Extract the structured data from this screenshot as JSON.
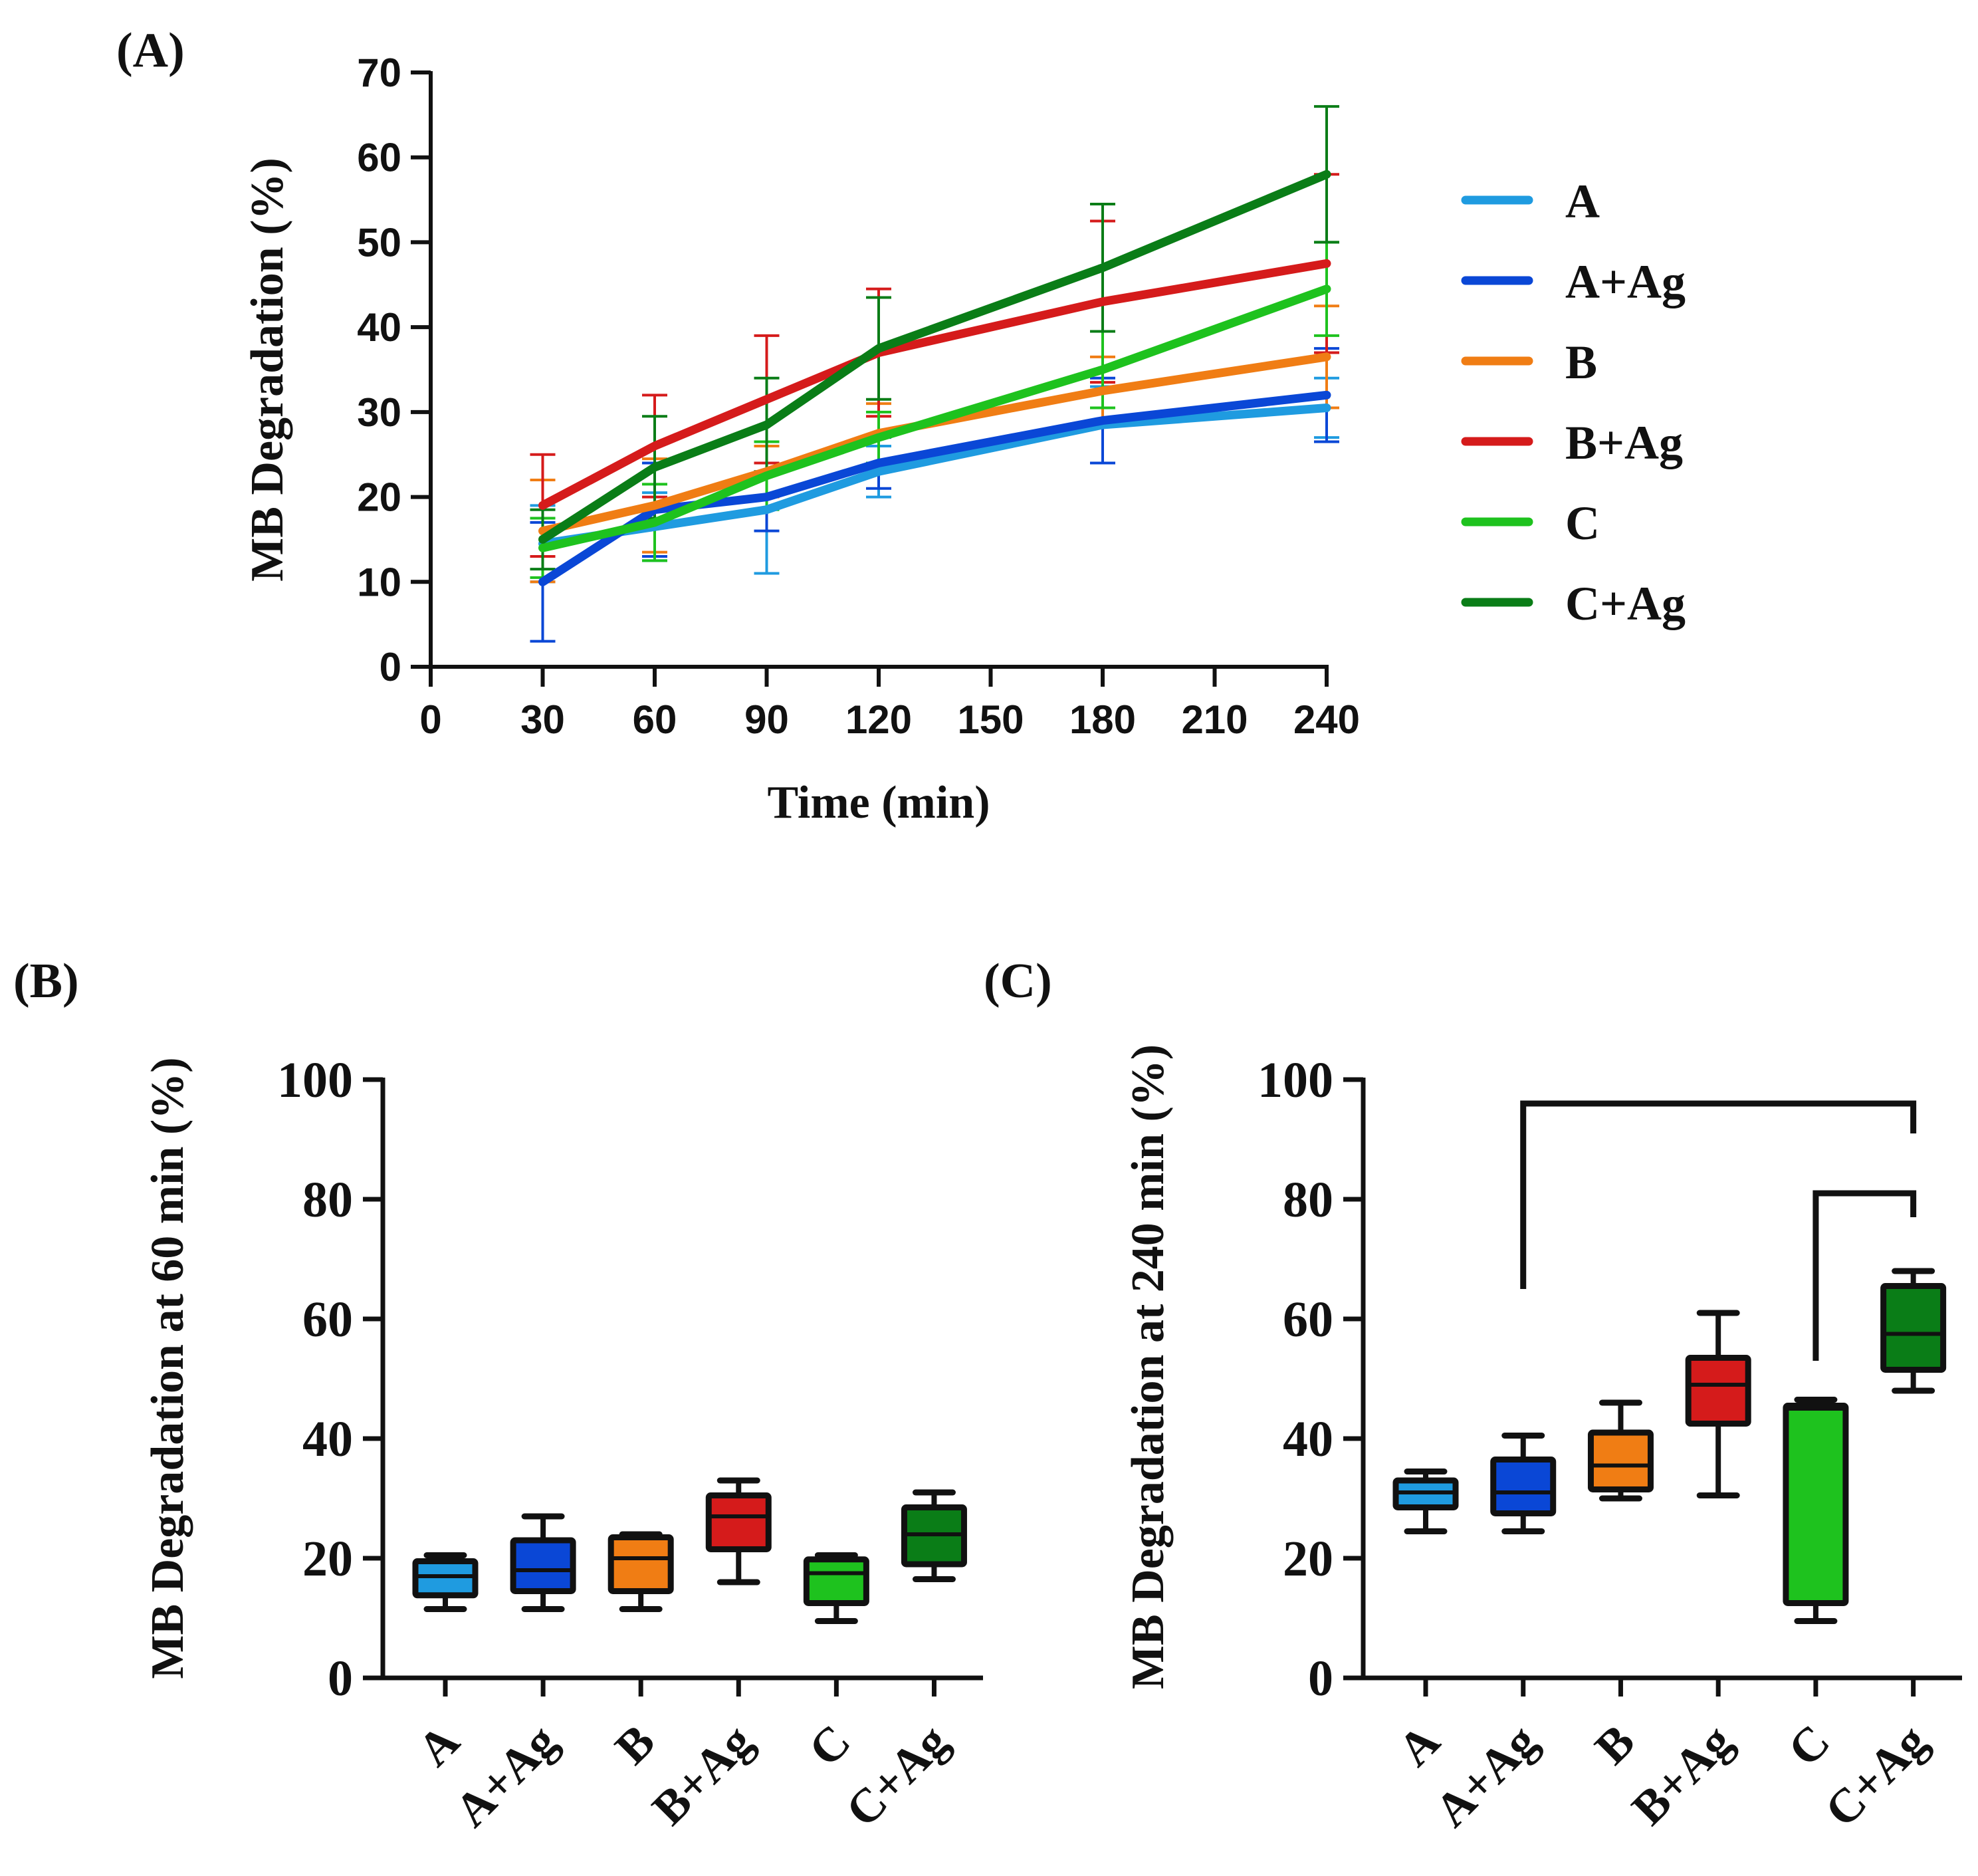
{
  "panels": {
    "a_label": "(A)",
    "b_label": "(B)",
    "c_label": "(C)"
  },
  "chart_data": [
    {
      "panel": "(A)",
      "type": "line",
      "title": "",
      "xlabel": "Time (min)",
      "ylabel": "MB Degradation (%)",
      "xlim": [
        0,
        240
      ],
      "ylim": [
        0,
        70
      ],
      "xticks": [
        0,
        30,
        60,
        90,
        120,
        150,
        180,
        210,
        240
      ],
      "yticks": [
        0,
        10,
        20,
        30,
        40,
        50,
        60,
        70
      ],
      "legend_position": "right",
      "x": [
        30,
        60,
        90,
        120,
        180,
        240
      ],
      "series": [
        {
          "name": "A",
          "color": "#1f9be0",
          "values": [
            14.5,
            16.5,
            18.5,
            23.0,
            28.5,
            30.5
          ],
          "errors": [
            4.5,
            4.0,
            7.5,
            3.0,
            4.5,
            3.5
          ]
        },
        {
          "name": "A+Ag",
          "color": "#0a47d6",
          "values": [
            10.0,
            18.5,
            20.0,
            24.0,
            29.0,
            32.0
          ],
          "errors": [
            7.0,
            5.5,
            4.0,
            3.0,
            5.0,
            5.5
          ]
        },
        {
          "name": "B",
          "color": "#f07d14",
          "values": [
            16.0,
            19.0,
            23.0,
            27.5,
            32.5,
            36.5
          ],
          "errors": [
            6.0,
            5.5,
            3.0,
            3.5,
            4.0,
            6.0
          ]
        },
        {
          "name": "B+Ag",
          "color": "#d51b1b",
          "values": [
            19.0,
            26.0,
            31.5,
            37.0,
            43.0,
            47.5
          ],
          "errors": [
            6.0,
            6.0,
            7.5,
            7.5,
            9.5,
            10.5
          ]
        },
        {
          "name": "C",
          "color": "#1ec21e",
          "values": [
            14.0,
            17.0,
            22.5,
            27.0,
            35.0,
            44.5
          ],
          "errors": [
            3.5,
            4.5,
            4.0,
            3.0,
            4.5,
            5.5
          ]
        },
        {
          "name": "C+Ag",
          "color": "#0a7d17",
          "values": [
            15.0,
            23.5,
            28.5,
            37.5,
            47.0,
            58.0
          ],
          "errors": [
            3.5,
            6.0,
            5.5,
            6.0,
            7.5,
            8.0
          ]
        }
      ]
    },
    {
      "panel": "(B)",
      "type": "box",
      "title": "",
      "xlabel": "",
      "ylabel": "MB Degradation at 60 min (%)",
      "ylim": [
        0,
        100
      ],
      "yticks": [
        0,
        20,
        40,
        60,
        80,
        100
      ],
      "categories": [
        "A",
        "A+Ag",
        "B",
        "B+Ag",
        "C",
        "C+Ag"
      ],
      "boxes": [
        {
          "name": "A",
          "color": "#1f9be0",
          "min": 11.5,
          "q1": 13.8,
          "median": 17.0,
          "q3": 19.5,
          "max": 20.5
        },
        {
          "name": "A+Ag",
          "color": "#0a47d6",
          "min": 11.5,
          "q1": 14.5,
          "median": 18.0,
          "q3": 23.0,
          "max": 27.0
        },
        {
          "name": "B",
          "color": "#f07d14",
          "min": 11.5,
          "q1": 14.5,
          "median": 20.0,
          "q3": 23.5,
          "max": 24.0
        },
        {
          "name": "B+Ag",
          "color": "#d51b1b",
          "min": 16.0,
          "q1": 21.5,
          "median": 27.0,
          "q3": 30.5,
          "max": 33.0
        },
        {
          "name": "C",
          "color": "#1ec21e",
          "min": 9.5,
          "q1": 12.5,
          "median": 17.5,
          "q3": 19.8,
          "max": 20.5
        },
        {
          "name": "C+Ag",
          "color": "#0a7d17",
          "min": 16.5,
          "q1": 19.0,
          "median": 24.0,
          "q3": 28.5,
          "max": 31.0
        }
      ]
    },
    {
      "panel": "(C)",
      "type": "box",
      "title": "",
      "xlabel": "",
      "ylabel": "MB Degradation at 240 min (%)",
      "ylim": [
        0,
        100
      ],
      "yticks": [
        0,
        20,
        40,
        60,
        80,
        100
      ],
      "categories": [
        "A",
        "A+Ag",
        "B",
        "B+Ag",
        "C",
        "C+Ag"
      ],
      "boxes": [
        {
          "name": "A",
          "color": "#1f9be0",
          "min": 24.5,
          "q1": 28.5,
          "median": 31.0,
          "q3": 33.0,
          "max": 34.5
        },
        {
          "name": "A+Ag",
          "color": "#0a47d6",
          "min": 24.5,
          "q1": 27.5,
          "median": 31.0,
          "q3": 36.5,
          "max": 40.5
        },
        {
          "name": "B",
          "color": "#f07d14",
          "min": 30.0,
          "q1": 31.5,
          "median": 35.5,
          "q3": 41.0,
          "max": 46.0
        },
        {
          "name": "B+Ag",
          "color": "#d51b1b",
          "min": 30.5,
          "q1": 42.5,
          "median": 49.0,
          "q3": 53.5,
          "max": 61.0
        },
        {
          "name": "C",
          "color": "#1ec21e",
          "min": 9.5,
          "q1": 12.5,
          "median": 45.0,
          "q3": 45.5,
          "max": 46.5
        },
        {
          "name": "C+Ag",
          "color": "#0a7d17",
          "min": 48.0,
          "q1": 51.5,
          "median": 57.5,
          "q3": 65.5,
          "max": 68.0
        }
      ],
      "significance_brackets": [
        {
          "from": "A+Ag",
          "to": "C+Ag",
          "level": 96,
          "from_end": 65,
          "to_end": 91
        },
        {
          "from": "C",
          "to": "C+Ag",
          "level": 81,
          "from_end": 53,
          "to_end": 77
        }
      ]
    }
  ]
}
